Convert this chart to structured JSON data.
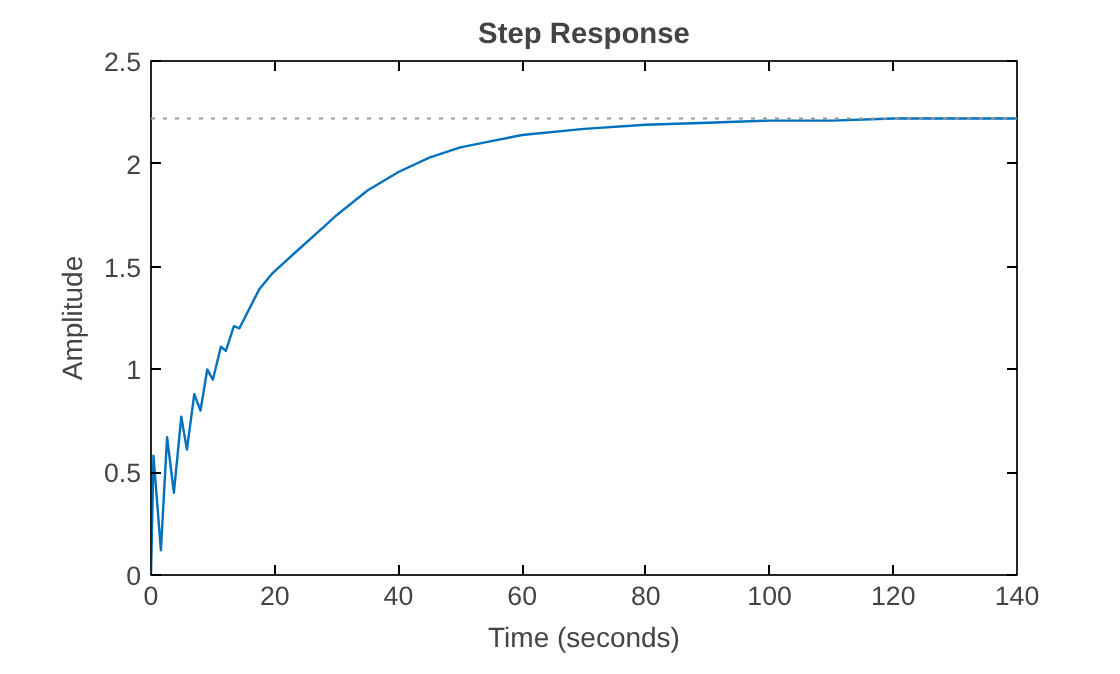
{
  "chart_data": {
    "type": "line",
    "title": "Step Response",
    "xlabel": "Time (seconds)",
    "ylabel": "Amplitude",
    "series": [
      {
        "color": "#0072bd",
        "x": [
          0,
          0.4,
          1.6,
          2.6,
          3.7,
          4.9,
          5.8,
          7.0,
          8.0,
          9.1,
          10,
          11.3,
          12.1,
          13.4,
          14.3,
          17.5,
          19.7,
          23,
          27.8,
          30,
          35,
          40,
          45,
          50,
          55,
          60,
          70,
          80,
          90,
          100,
          110,
          120,
          130,
          140
        ],
        "values": [
          0,
          0.58,
          0.12,
          0.67,
          0.4,
          0.77,
          0.61,
          0.88,
          0.8,
          1.0,
          0.95,
          1.11,
          1.09,
          1.21,
          1.2,
          1.39,
          1.47,
          1.56,
          1.69,
          1.75,
          1.87,
          1.96,
          2.03,
          2.08,
          2.11,
          2.14,
          2.17,
          2.19,
          2.2,
          2.21,
          2.21,
          2.22,
          2.22,
          2.22
        ]
      }
    ],
    "xlim": [
      0,
      140
    ],
    "ylim": [
      0,
      2.5
    ],
    "xticks": [
      0,
      20,
      40,
      60,
      80,
      100,
      120,
      140
    ],
    "yticks": [
      0,
      0.5,
      1,
      1.5,
      2,
      2.5
    ],
    "ref_lines": [
      {
        "axis": "y",
        "value": 2.22,
        "color": "#999999",
        "line_style": "dotted"
      }
    ],
    "grid": false,
    "line_style": "solid",
    "marker": "none"
  }
}
